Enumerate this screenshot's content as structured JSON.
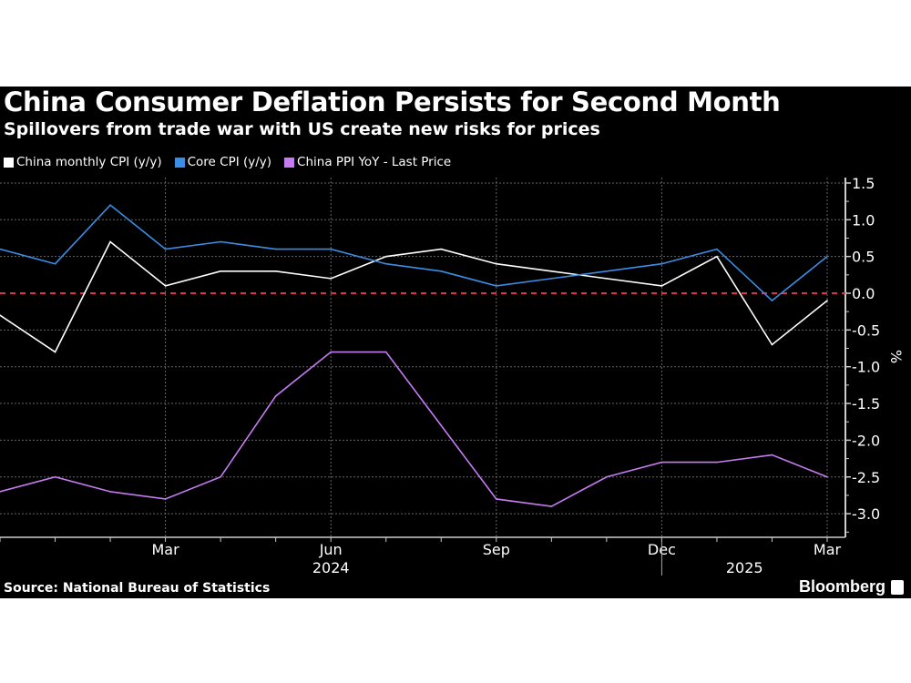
{
  "chart_data": {
    "type": "line",
    "title": "China Consumer Deflation Persists for Second Month",
    "subtitle": "Spillovers from trade war with US create new risks for prices",
    "x": [
      "Dec 2023",
      "Jan 2024",
      "Feb 2024",
      "Mar 2024",
      "Apr 2024",
      "May 2024",
      "Jun 2024",
      "Jul 2024",
      "Aug 2024",
      "Sep 2024",
      "Oct 2024",
      "Nov 2024",
      "Dec 2024",
      "Jan 2025",
      "Feb 2025",
      "Mar 2025"
    ],
    "x_tick_labels": [
      {
        "index": 3,
        "label": "Mar"
      },
      {
        "index": 6,
        "label": "Jun"
      },
      {
        "index": 9,
        "label": "Sep"
      },
      {
        "index": 12,
        "label": "Dec"
      },
      {
        "index": 15,
        "label": "Mar"
      }
    ],
    "year_labels": [
      {
        "index": 6,
        "label": "2024"
      },
      {
        "index": 13.5,
        "label": "2025"
      }
    ],
    "ylabel": "%",
    "ylim": [
      -3.2,
      1.6
    ],
    "yticks": [
      "1.5",
      "1.0",
      "0.5",
      "0.0",
      "-0.5",
      "-1.0",
      "-1.5",
      "-2.0",
      "-2.5",
      "-3.0"
    ],
    "grid": true,
    "legend_position": "top-left",
    "series": [
      {
        "name": "China monthly CPI (y/y)",
        "color": "#ffffff",
        "values": [
          -0.3,
          -0.8,
          0.7,
          0.1,
          0.3,
          0.3,
          0.2,
          0.5,
          0.6,
          0.4,
          0.3,
          0.2,
          0.1,
          0.5,
          -0.7,
          -0.1
        ]
      },
      {
        "name": "Core CPI (y/y)",
        "color": "#3a8ee6",
        "values": [
          0.6,
          0.4,
          1.2,
          0.6,
          0.7,
          0.6,
          0.6,
          0.4,
          0.3,
          0.1,
          0.2,
          0.3,
          0.4,
          0.6,
          -0.1,
          0.5
        ]
      },
      {
        "name": "China PPI YoY - Last Price",
        "color": "#c57cf0",
        "values": [
          -2.7,
          -2.5,
          -2.7,
          -2.8,
          -2.5,
          -1.4,
          -0.8,
          -0.8,
          -1.8,
          -2.8,
          -2.9,
          -2.5,
          -2.3,
          -2.3,
          -2.2,
          -2.5
        ]
      }
    ],
    "zero_line_color": "#e0314b"
  },
  "footer": {
    "source": "Source: National Bureau of Statistics",
    "brand": "Bloomberg"
  }
}
